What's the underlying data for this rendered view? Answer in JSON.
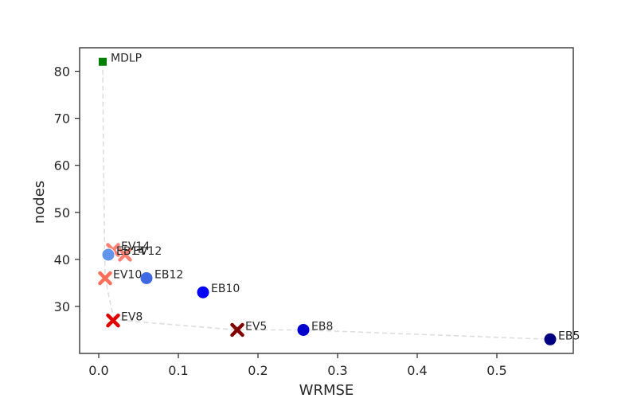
{
  "chart_data": {
    "type": "scatter",
    "xlabel": "WRMSE",
    "ylabel": "nodes",
    "xlim": [
      -0.024,
      0.596
    ],
    "ylim": [
      20,
      85
    ],
    "xticks": [
      0.0,
      0.1,
      0.2,
      0.3,
      0.4,
      0.5
    ],
    "xtick_labels": [
      "0.0",
      "0.1",
      "0.2",
      "0.3",
      "0.4",
      "0.5"
    ],
    "yticks": [
      30,
      40,
      50,
      60,
      70,
      80
    ],
    "ytick_labels": [
      "30",
      "40",
      "50",
      "60",
      "70",
      "80"
    ],
    "grid": false,
    "frontier": {
      "style": "dashed",
      "color": "#dddddd",
      "x": [
        0.005,
        0.006,
        0.008,
        0.018,
        0.03,
        0.173,
        0.257,
        0.567
      ],
      "y": [
        82,
        60,
        36,
        28,
        27,
        25,
        25,
        23
      ]
    },
    "points": [
      {
        "label": "MDLP",
        "x": 0.005,
        "y": 82,
        "marker": "square",
        "color": "#008000"
      },
      {
        "label": "EV14",
        "x": 0.018,
        "y": 42,
        "marker": "x",
        "color": "#fa8072"
      },
      {
        "label": "EB14",
        "x": 0.012,
        "y": 41,
        "marker": "circle",
        "color": "#6495ed"
      },
      {
        "label": "EV12",
        "x": 0.033,
        "y": 41,
        "marker": "x",
        "color": "#fa8072"
      },
      {
        "label": "EV10",
        "x": 0.008,
        "y": 36,
        "marker": "x",
        "color": "#fa6e5a"
      },
      {
        "label": "EB12",
        "x": 0.06,
        "y": 36,
        "marker": "circle",
        "color": "#4169e1"
      },
      {
        "label": "EB10",
        "x": 0.131,
        "y": 33,
        "marker": "circle",
        "color": "#0000ff"
      },
      {
        "label": "EV8",
        "x": 0.018,
        "y": 27,
        "marker": "x",
        "color": "#e00000"
      },
      {
        "label": "EV5",
        "x": 0.174,
        "y": 25,
        "marker": "x",
        "color": "#800000"
      },
      {
        "label": "EB8",
        "x": 0.257,
        "y": 25,
        "marker": "circle",
        "color": "#0000cd"
      },
      {
        "label": "EB5",
        "x": 0.567,
        "y": 23,
        "marker": "circle",
        "color": "#000080"
      }
    ]
  }
}
